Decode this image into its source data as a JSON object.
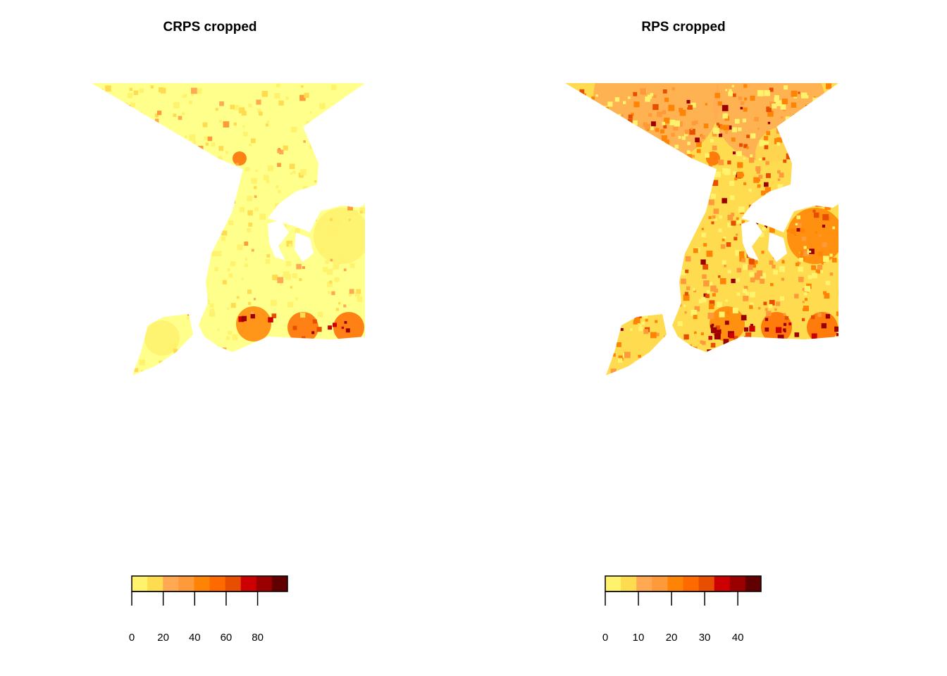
{
  "colors": {
    "ramp": [
      "#FFF26C",
      "#FFDB4F",
      "#FFAA52",
      "#FF9A3A",
      "#FF8305",
      "#FF6A00",
      "#E84E00",
      "#CC0000",
      "#9A0000",
      "#600000"
    ],
    "land_base": "#FFFF8C"
  },
  "panels": [
    {
      "title": "CRPS cropped",
      "legend": {
        "ticks": [
          0,
          20,
          40,
          60,
          80
        ],
        "max": 99
      },
      "intensity": "low"
    },
    {
      "title": "RPS cropped",
      "legend": {
        "ticks": [
          0,
          10,
          20,
          30,
          40
        ],
        "max": 47
      },
      "intensity": "high"
    }
  ]
}
